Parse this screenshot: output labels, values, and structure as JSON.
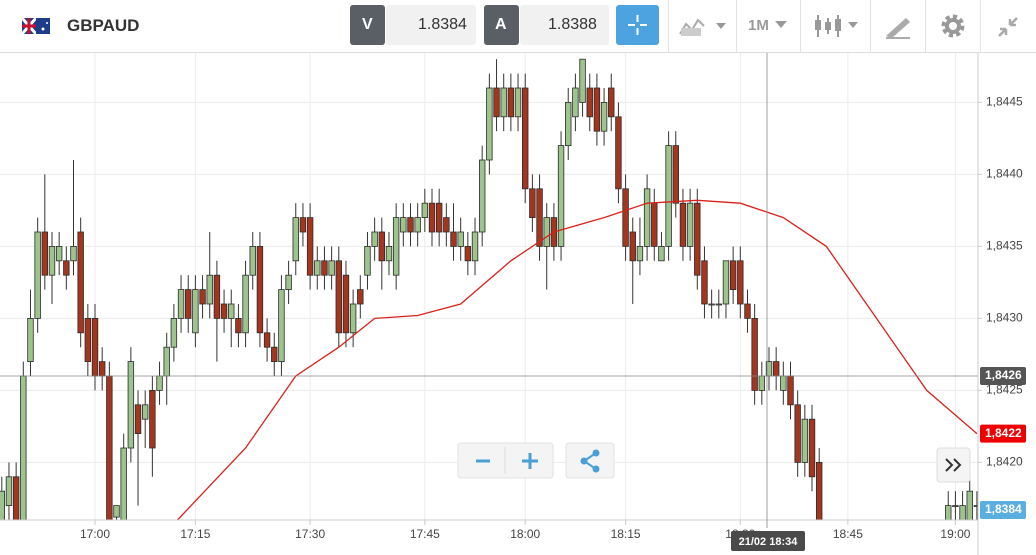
{
  "header": {
    "symbol": "GBPAUD",
    "bid_label": "V",
    "bid": "1.8384",
    "ask_label": "A",
    "ask": "1.8388",
    "interval": "1M"
  },
  "chart_data": {
    "type": "candlestick",
    "categories": [
      null,
      null,
      null,
      null,
      null,
      null,
      null,
      null,
      null,
      null,
      null,
      null,
      null,
      "17:00",
      null,
      null,
      null,
      null,
      null,
      null,
      null,
      null,
      null,
      null,
      null,
      null,
      null,
      "17:15",
      null,
      null,
      null,
      null,
      null,
      null,
      null,
      null,
      null,
      null,
      null,
      null,
      null,
      null,
      null,
      "17:30",
      null,
      null,
      null,
      null,
      null,
      null,
      null,
      null,
      null,
      null,
      null,
      null,
      null,
      null,
      null,
      "17:45",
      null,
      null,
      null,
      null,
      null,
      null,
      null,
      null,
      null,
      null,
      null,
      null,
      null,
      "18:00",
      null,
      null,
      null,
      null,
      null,
      null,
      null,
      null,
      null,
      null,
      null,
      null,
      null,
      "18:15",
      null,
      null,
      null,
      null,
      null,
      null,
      null,
      null,
      null,
      null,
      null,
      null,
      null,
      null,
      null,
      "18:30",
      null,
      null,
      null,
      null,
      null,
      null,
      null,
      null,
      null,
      null,
      null,
      null,
      null,
      null,
      "18:45",
      null,
      null,
      null,
      null,
      null,
      null,
      null,
      null,
      null,
      null,
      null,
      null,
      null,
      null,
      "19:00",
      null,
      null,
      null
    ],
    "candles": [
      [
        1.8416,
        1.8419,
        1.8416,
        1.8418
      ],
      [
        1.8417,
        1.842,
        1.8416,
        1.8419
      ],
      [
        1.8419,
        1.842,
        1.8416,
        1.8416
      ],
      [
        1.8416,
        1.8427,
        1.8416,
        1.8426
      ],
      [
        1.8427,
        1.8432,
        1.8426,
        1.843
      ],
      [
        1.843,
        1.8437,
        1.8429,
        1.8436
      ],
      [
        1.8436,
        1.844,
        1.8432,
        1.8433
      ],
      [
        1.8433,
        1.8436,
        1.8431,
        1.8435
      ],
      [
        1.8434,
        1.8436,
        1.8433,
        1.8435
      ],
      [
        1.8434,
        1.8435,
        1.8432,
        1.8433
      ],
      [
        1.8434,
        1.8441,
        1.8433,
        1.8435
      ],
      [
        1.8436,
        1.8437,
        1.8428,
        1.8429
      ],
      [
        1.843,
        1.8431,
        1.8426,
        1.8427
      ],
      [
        1.843,
        1.8431,
        1.8425,
        1.8426
      ],
      [
        1.8427,
        1.8428,
        1.8425,
        1.8426
      ],
      [
        1.8426,
        1.8427,
        1.8416,
        1.8416
      ],
      [
        1.84162,
        1.8417,
        1.8416,
        1.8417
      ],
      [
        1.8416,
        1.8422,
        1.8416,
        1.8421
      ],
      [
        1.8421,
        1.8428,
        1.842,
        1.8427
      ],
      [
        1.8424,
        1.8425,
        1.8417,
        1.8422
      ],
      [
        1.8423,
        1.8425,
        1.8421,
        1.8424
      ],
      [
        1.8425,
        1.8426,
        1.8419,
        1.8421
      ],
      [
        1.8425,
        1.8427,
        1.8424,
        1.8426
      ],
      [
        1.8426,
        1.8429,
        1.8424,
        1.8428
      ],
      [
        1.8428,
        1.8431,
        1.8427,
        1.843
      ],
      [
        1.843,
        1.8433,
        1.8429,
        1.8432
      ],
      [
        1.8432,
        1.8433,
        1.8429,
        1.843
      ],
      [
        1.8429,
        1.8433,
        1.8428,
        1.8432
      ],
      [
        1.8432,
        1.8433,
        1.843,
        1.8431
      ],
      [
        1.8431,
        1.8436,
        1.843,
        1.8433
      ],
      [
        1.8433,
        1.8434,
        1.8427,
        1.843
      ],
      [
        1.8431,
        1.8432,
        1.8429,
        1.843
      ],
      [
        1.843,
        1.8432,
        1.8428,
        1.8431
      ],
      [
        1.843,
        1.8431,
        1.8428,
        1.8429
      ],
      [
        1.8429,
        1.8434,
        1.8428,
        1.8433
      ],
      [
        1.8433,
        1.8436,
        1.8432,
        1.8435
      ],
      [
        1.8435,
        1.8436,
        1.8428,
        1.8429
      ],
      [
        1.8429,
        1.843,
        1.8427,
        1.8428
      ],
      [
        1.8428,
        1.8429,
        1.8426,
        1.8427
      ],
      [
        1.8427,
        1.8433,
        1.8426,
        1.8432
      ],
      [
        1.8432,
        1.8434,
        1.8431,
        1.8433
      ],
      [
        1.8434,
        1.8438,
        1.8433,
        1.8437
      ],
      [
        1.8437,
        1.8438,
        1.8435,
        1.8436
      ],
      [
        1.8437,
        1.8438,
        1.8432,
        1.8433
      ],
      [
        1.8433,
        1.8435,
        1.8432,
        1.8434
      ],
      [
        1.8434,
        1.8435,
        1.8432,
        1.8433
      ],
      [
        1.8433,
        1.8435,
        1.8432,
        1.8434
      ],
      [
        1.8434,
        1.8435,
        1.8428,
        1.8429
      ],
      [
        1.8433,
        1.8434,
        1.8428,
        1.8429
      ],
      [
        1.8429,
        1.8432,
        1.8428,
        1.8431
      ],
      [
        1.8432,
        1.8433,
        1.843,
        1.8431
      ],
      [
        1.8433,
        1.8436,
        1.8432,
        1.8435
      ],
      [
        1.8435,
        1.8437,
        1.8434,
        1.8436
      ],
      [
        1.8436,
        1.8437,
        1.8432,
        1.8434
      ],
      [
        1.8434,
        1.8436,
        1.8433,
        1.8435
      ],
      [
        1.8433,
        1.8438,
        1.8432,
        1.8437
      ],
      [
        1.8436,
        1.8438,
        1.8435,
        1.8437
      ],
      [
        1.8437,
        1.8438,
        1.8435,
        1.8436
      ],
      [
        1.8436,
        1.8438,
        1.8435,
        1.8437
      ],
      [
        1.8437,
        1.8439,
        1.8436,
        1.8438
      ],
      [
        1.8438,
        1.8439,
        1.8435,
        1.8436
      ],
      [
        1.8438,
        1.8439,
        1.8435,
        1.8436
      ],
      [
        1.8437,
        1.8438,
        1.8435,
        1.8436
      ],
      [
        1.8436,
        1.8438,
        1.8434,
        1.8435
      ],
      [
        1.8435,
        1.8437,
        1.8434,
        1.8436
      ],
      [
        1.8435,
        1.8436,
        1.8433,
        1.8434
      ],
      [
        1.8434,
        1.8437,
        1.8433,
        1.8436
      ],
      [
        1.8436,
        1.8442,
        1.8435,
        1.8441
      ],
      [
        1.8441,
        1.8447,
        1.844,
        1.8446
      ],
      [
        1.8446,
        1.8448,
        1.8443,
        1.8444
      ],
      [
        1.8444,
        1.8447,
        1.8443,
        1.8446
      ],
      [
        1.8446,
        1.8447,
        1.8443,
        1.8444
      ],
      [
        1.8444,
        1.8447,
        1.8443,
        1.8446
      ],
      [
        1.8446,
        1.8447,
        1.8438,
        1.8439
      ],
      [
        1.8439,
        1.844,
        1.8436,
        1.8437
      ],
      [
        1.8439,
        1.844,
        1.8434,
        1.8435
      ],
      [
        1.8435,
        1.8438,
        1.8432,
        1.8437
      ],
      [
        1.8437,
        1.8438,
        1.8434,
        1.8435
      ],
      [
        1.8435,
        1.8443,
        1.8434,
        1.8442
      ],
      [
        1.8442,
        1.8446,
        1.8441,
        1.8445
      ],
      [
        1.8444,
        1.8447,
        1.8443,
        1.8446
      ],
      [
        1.8445,
        1.8448,
        1.8444,
        1.8448
      ],
      [
        1.8446,
        1.8447,
        1.8443,
        1.8444
      ],
      [
        1.8446,
        1.8447,
        1.8442,
        1.8443
      ],
      [
        1.8443,
        1.8446,
        1.8442,
        1.8445
      ],
      [
        1.8446,
        1.8447,
        1.8443,
        1.8444
      ],
      [
        1.8444,
        1.8445,
        1.8438,
        1.8439
      ],
      [
        1.8439,
        1.844,
        1.8434,
        1.8435
      ],
      [
        1.8436,
        1.8437,
        1.8431,
        1.8434
      ],
      [
        1.8434,
        1.8437,
        1.8433,
        1.8435
      ],
      [
        1.8435,
        1.844,
        1.8434,
        1.8439
      ],
      [
        1.8438,
        1.8439,
        1.8434,
        1.8435
      ],
      [
        1.8434,
        1.8436,
        1.8434,
        1.8435
      ],
      [
        1.8435,
        1.8443,
        1.8434,
        1.8442
      ],
      [
        1.8442,
        1.8443,
        1.8437,
        1.8438
      ],
      [
        1.8438,
        1.8439,
        1.8434,
        1.8435
      ],
      [
        1.8435,
        1.8439,
        1.8434,
        1.8438
      ],
      [
        1.8438,
        1.8439,
        1.8432,
        1.8433
      ],
      [
        1.8434,
        1.8435,
        1.843,
        1.8431
      ],
      [
        1.8431,
        1.8432,
        1.843,
        1.8431
      ],
      [
        1.8431,
        1.8432,
        1.843,
        1.8431
      ],
      [
        1.8431,
        1.8434,
        1.843,
        1.8434
      ],
      [
        1.8434,
        1.8435,
        1.8431,
        1.8432
      ],
      [
        1.8434,
        1.8435,
        1.843,
        1.8431
      ],
      [
        1.8431,
        1.8432,
        1.8429,
        1.843
      ],
      [
        1.843,
        1.8431,
        1.8424,
        1.8425
      ],
      [
        1.8425,
        1.8427,
        1.8424,
        1.8426
      ],
      [
        1.8426,
        1.8428,
        1.8425,
        1.8427
      ],
      [
        1.8427,
        1.8428,
        1.8425,
        1.8426
      ],
      [
        1.8425,
        1.8427,
        1.8424,
        1.8426
      ],
      [
        1.8426,
        1.8427,
        1.8423,
        1.8424
      ],
      [
        1.8424,
        1.8425,
        1.8419,
        1.842
      ],
      [
        1.842,
        1.8424,
        1.8419,
        1.8423
      ],
      [
        1.8423,
        1.8424,
        1.8418,
        1.8419
      ],
      [
        1.842,
        1.8421,
        1.8416,
        1.8416
      ],
      null,
      null,
      null,
      null,
      null,
      null,
      null,
      null,
      null,
      null,
      null,
      null,
      null,
      null,
      null,
      null,
      null,
      [
        1.8416,
        1.8418,
        1.8416,
        1.8417
      ],
      [
        1.8417,
        1.8418,
        1.8416,
        1.8417
      ],
      [
        1.8416,
        1.8418,
        1.8416,
        1.8417
      ],
      [
        1.8416,
        1.8419,
        1.8416,
        1.8418
      ],
      [
        1.8417,
        1.8418,
        1.8416,
        1.8417
      ]
    ],
    "up_color": "#9cc48c",
    "down_color": "#a4361f",
    "ma": {
      "color": "#d9221c",
      "x": [
        24.5,
        34,
        41,
        47,
        52,
        58,
        64,
        71,
        77,
        84,
        90,
        97,
        103,
        109,
        115,
        122,
        129,
        136
      ],
      "values": [
        1.8416,
        1.8421,
        1.8426,
        1.8428,
        1.843,
        1.84302,
        1.8431,
        1.8434,
        1.8436,
        1.8437,
        1.8438,
        1.84382,
        1.8438,
        1.8437,
        1.8435,
        1.843,
        1.8425,
        1.8422
      ]
    },
    "ylim": [
      1.8416,
      1.84485
    ],
    "yticks": [
      {
        "value": 1.842,
        "label": "1,8420"
      },
      {
        "value": 1.8425,
        "label": "1,8425"
      },
      {
        "value": 1.843,
        "label": "1,8430"
      },
      {
        "value": 1.8435,
        "label": "1,8435"
      },
      {
        "value": 1.844,
        "label": "1,8440"
      },
      {
        "value": 1.8445,
        "label": "1,8445"
      }
    ],
    "grid": true,
    "price_labels": [
      {
        "value": 1.8426,
        "label": "1,8426",
        "color": "#555555"
      },
      {
        "value": 1.8422,
        "label": "1,8422",
        "color": "#ee0000"
      },
      {
        "value": 1.8384,
        "label": "1,8384",
        "color": "#5aaee0"
      }
    ],
    "crosshair_time": "21/02 18:34"
  }
}
